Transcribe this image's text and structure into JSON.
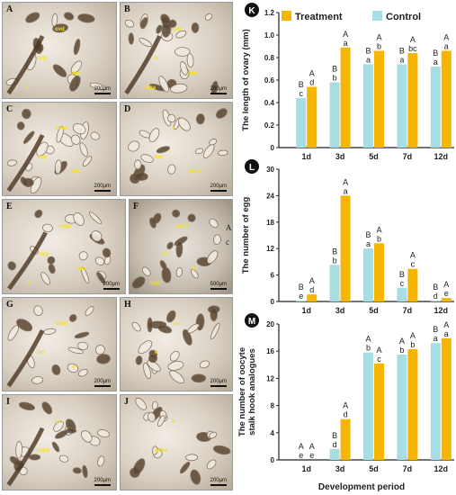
{
  "micrographs": {
    "panels": [
      {
        "letter": "A",
        "tags": [
          "ovd",
          "ovp",
          "mo",
          "e"
        ],
        "scale": "200μm"
      },
      {
        "letter": "B",
        "tags": [
          "ovd",
          "e",
          "mo",
          "osha"
        ],
        "scale": "200μm"
      },
      {
        "letter": "C",
        "tags": [
          "osha",
          "ovp",
          "mo"
        ],
        "scale": "200μm"
      },
      {
        "letter": "D",
        "tags": [
          "e",
          "mo",
          "osha"
        ],
        "scale": "200μm"
      },
      {
        "letter": "E",
        "tags": [
          "osha",
          "ovp",
          "mo",
          "e"
        ],
        "scale": "200μm"
      },
      {
        "letter": "F",
        "tags": [
          "osha",
          "mo",
          "e",
          "ovp"
        ],
        "scale": "500μm"
      },
      {
        "letter": "G",
        "tags": [
          "osha",
          "mo",
          "e"
        ],
        "scale": "200μm"
      },
      {
        "letter": "H",
        "tags": [
          "mo",
          "e"
        ],
        "scale": "200μm"
      },
      {
        "letter": "I",
        "tags": [
          "mo",
          "osha"
        ],
        "scale": "200μm"
      },
      {
        "letter": "J",
        "tags": [
          "e",
          "osha"
        ],
        "scale": "200μm"
      }
    ],
    "side_letters": [
      "A",
      "c"
    ]
  },
  "legend": {
    "treatment": "Treatment",
    "control": "Control"
  },
  "colors": {
    "treatment": "#f7b500",
    "control": "#a8dde2",
    "axis": "#222222"
  },
  "xlabel": "Development period",
  "chart_data": [
    {
      "panel": "K",
      "type": "bar",
      "ylabel": "The length of ovary (mm)",
      "categories": [
        "1d",
        "3d",
        "5d",
        "7d",
        "12d"
      ],
      "ylim": [
        0,
        1.2
      ],
      "yticks": [
        "0",
        "0.2",
        "0.4",
        "0.6",
        "0.8",
        "1.0",
        "1.2"
      ],
      "series": [
        {
          "name": "Control",
          "values": [
            0.44,
            0.58,
            0.74,
            0.74,
            0.72
          ],
          "top_labels": [
            "B",
            "B",
            "B",
            "B",
            "B"
          ],
          "in_labels": [
            "c",
            "b",
            "a",
            "a",
            "a"
          ]
        },
        {
          "name": "Treatment",
          "values": [
            0.54,
            0.89,
            0.86,
            0.84,
            0.86
          ],
          "top_labels": [
            "A",
            "A",
            "A",
            "A",
            "A"
          ],
          "in_labels": [
            "d",
            "a",
            "b",
            "bc",
            "a"
          ]
        }
      ]
    },
    {
      "panel": "L",
      "type": "bar",
      "ylabel": "The number of egg",
      "categories": [
        "1d",
        "3d",
        "5d",
        "7d",
        "12d"
      ],
      "ylim": [
        0,
        30
      ],
      "yticks": [
        "0",
        "6",
        "12",
        "18",
        "24",
        "30"
      ],
      "series": [
        {
          "name": "Control",
          "values": [
            0.2,
            8.3,
            12.0,
            3.1,
            0.2
          ],
          "top_labels": [
            "B",
            "B",
            "B",
            "B",
            "B"
          ],
          "in_labels": [
            "e",
            "b",
            "a",
            "c",
            "d"
          ]
        },
        {
          "name": "Treatment",
          "values": [
            1.6,
            24.0,
            13.2,
            7.4,
            0.8
          ],
          "top_labels": [
            "A",
            "A",
            "A",
            "A",
            "A"
          ],
          "in_labels": [
            "d",
            "a",
            "b",
            "c",
            "e"
          ]
        }
      ]
    },
    {
      "panel": "M",
      "type": "bar",
      "ylabel": "The number of oocyte stalk hook analogues",
      "categories": [
        "1d",
        "3d",
        "5d",
        "7d",
        "12d"
      ],
      "ylim": [
        0,
        20
      ],
      "yticks": [
        "0",
        "4",
        "8",
        "12",
        "16",
        "20"
      ],
      "series": [
        {
          "name": "Control",
          "values": [
            0,
            1.6,
            15.8,
            15.5,
            17.2
          ],
          "top_labels": [
            "A",
            "B",
            "A",
            "A",
            "B"
          ],
          "in_labels": [
            "e",
            "d",
            "b",
            "b",
            "a"
          ]
        },
        {
          "name": "Treatment",
          "values": [
            0,
            6.0,
            14.2,
            16.3,
            17.9
          ],
          "top_labels": [
            "A",
            "A",
            "A",
            "A",
            "A"
          ],
          "in_labels": [
            "e",
            "d",
            "c",
            "b",
            "a"
          ]
        }
      ]
    }
  ]
}
